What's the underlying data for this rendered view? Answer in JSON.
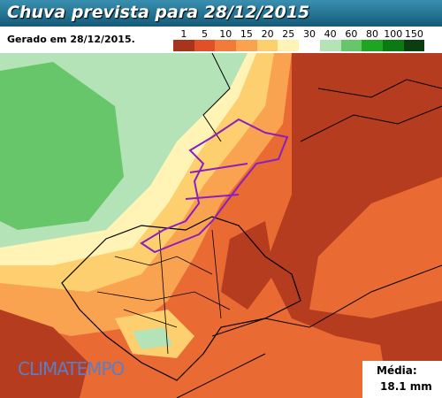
{
  "header": {
    "title": "Chuva prevista para 28/12/2015",
    "generated": "Gerado em 28/12/2015."
  },
  "legend": [
    {
      "label": 1,
      "color": "#a8341c"
    },
    {
      "label": 5,
      "color": "#e0512a"
    },
    {
      "label": 10,
      "color": "#f27a3b"
    },
    {
      "label": 15,
      "color": "#f9a350"
    },
    {
      "label": 20,
      "color": "#fdcf6e"
    },
    {
      "label": 25,
      "color": "#fff3b5"
    },
    {
      "label": 30,
      "color": "#ffffff"
    },
    {
      "label": 40,
      "color": "#b5e3b8"
    },
    {
      "label": 60,
      "color": "#68c66a"
    },
    {
      "label": 80,
      "color": "#1fa521"
    },
    {
      "label": 100,
      "color": "#0b7a10"
    },
    {
      "label": 150,
      "color": "#0a3e10"
    }
  ],
  "brand": "CLIMATEMPO",
  "average": {
    "label": "Média:",
    "value": "18.1 mm"
  }
}
